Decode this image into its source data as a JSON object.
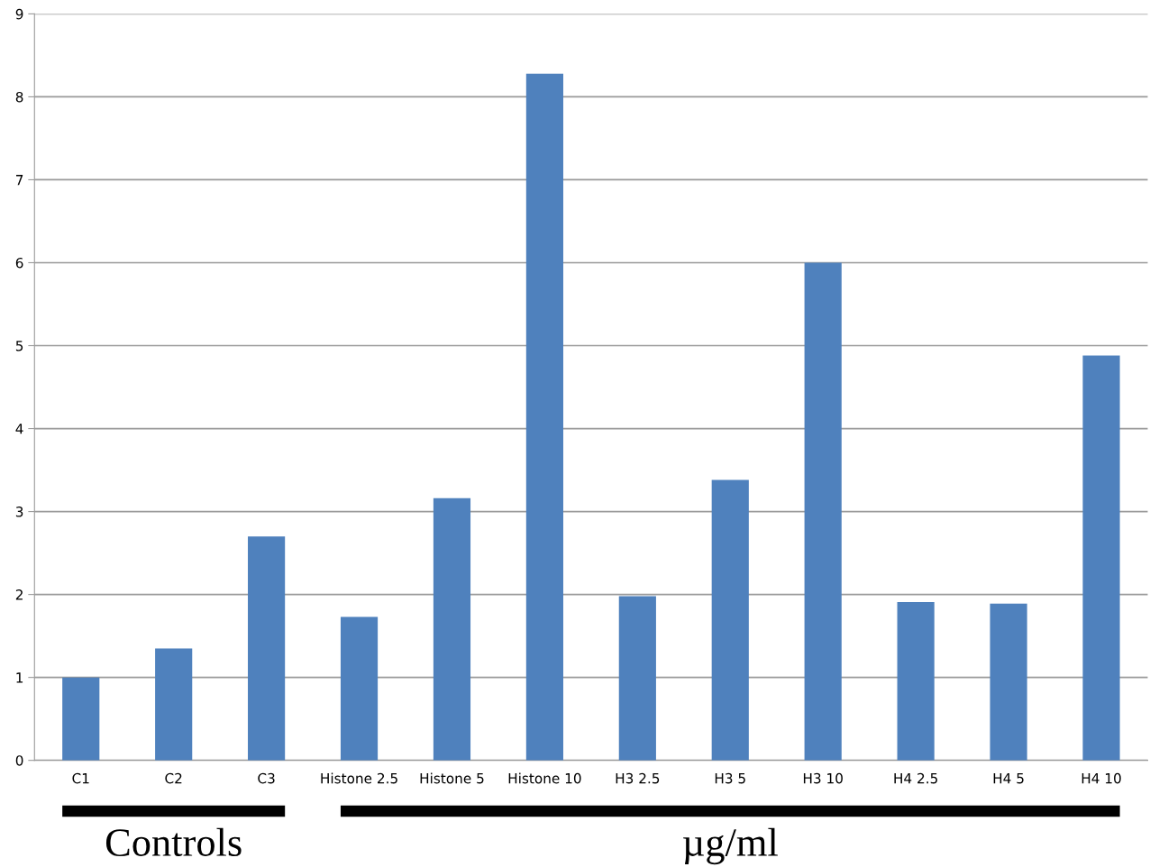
{
  "chart_data": {
    "type": "bar",
    "categories": [
      "C1",
      "C2",
      "C3",
      "Histone 2.5",
      "Histone 5",
      "Histone 10",
      "H3 2.5",
      "H3 5",
      "H3 10",
      "H4 2.5",
      "H4 5",
      "H4 10"
    ],
    "values": [
      1.0,
      1.35,
      2.7,
      1.73,
      3.16,
      8.28,
      1.98,
      3.38,
      6.0,
      1.91,
      1.89,
      4.88
    ],
    "color": "#4f81bd",
    "ylim": [
      0,
      9
    ],
    "yticks": [
      0,
      1,
      2,
      3,
      4,
      5,
      6,
      7,
      8,
      9
    ],
    "grid": "y",
    "annotations": [
      "Controls",
      "µg/ml"
    ]
  }
}
